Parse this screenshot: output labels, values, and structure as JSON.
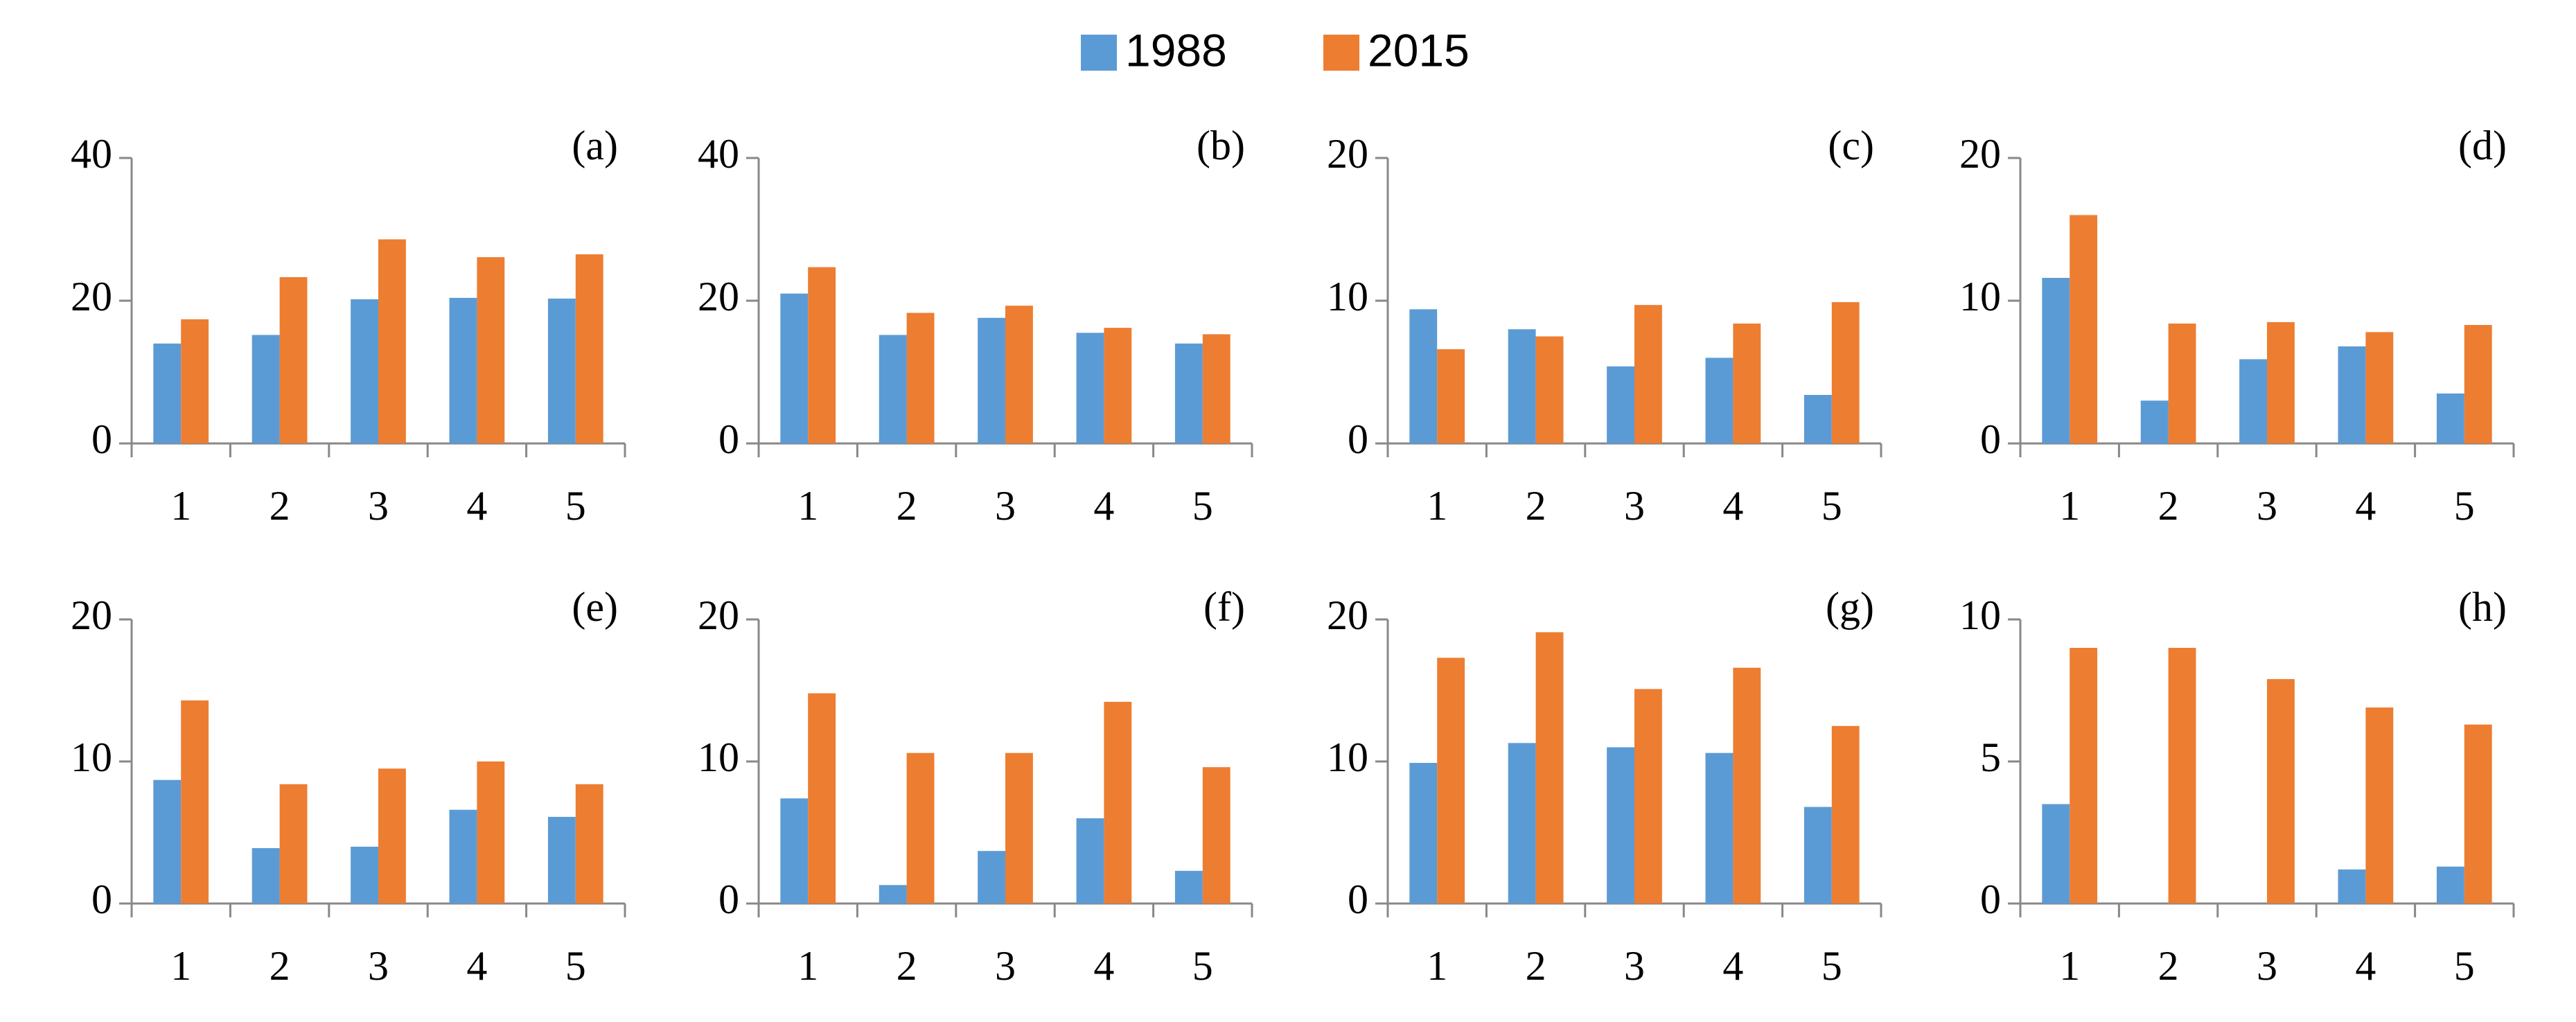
{
  "chart_data": [
    {
      "type": "bar",
      "title": "(a)",
      "categories": [
        "1",
        "2",
        "3",
        "4",
        "5"
      ],
      "ylim": [
        0,
        40
      ],
      "yticks": [
        0,
        20,
        40
      ],
      "series": [
        {
          "name": "1988",
          "color": "#5b9bd5",
          "values": [
            14,
            15.2,
            20.2,
            20.4,
            20.3
          ]
        },
        {
          "name": "2015",
          "color": "#ed7d31",
          "values": [
            17.4,
            23.3,
            28.6,
            26.1,
            26.5
          ]
        }
      ]
    },
    {
      "type": "bar",
      "title": "(b)",
      "categories": [
        "1",
        "2",
        "3",
        "4",
        "5"
      ],
      "ylim": [
        0,
        40
      ],
      "yticks": [
        0,
        20,
        40
      ],
      "series": [
        {
          "name": "1988",
          "color": "#5b9bd5",
          "values": [
            21,
            15.2,
            17.6,
            15.5,
            14
          ]
        },
        {
          "name": "2015",
          "color": "#ed7d31",
          "values": [
            24.7,
            18.3,
            19.3,
            16.2,
            15.3
          ]
        }
      ]
    },
    {
      "type": "bar",
      "title": "(c)",
      "categories": [
        "1",
        "2",
        "3",
        "4",
        "5"
      ],
      "ylim": [
        0,
        20
      ],
      "yticks": [
        0,
        10,
        20
      ],
      "series": [
        {
          "name": "1988",
          "color": "#5b9bd5",
          "values": [
            9.4,
            8,
            5.4,
            6,
            3.4
          ]
        },
        {
          "name": "2015",
          "color": "#ed7d31",
          "values": [
            6.6,
            7.5,
            9.7,
            8.4,
            9.9
          ]
        }
      ]
    },
    {
      "type": "bar",
      "title": "(d)",
      "categories": [
        "1",
        "2",
        "3",
        "4",
        "5"
      ],
      "ylim": [
        0,
        20
      ],
      "yticks": [
        0,
        10,
        20
      ],
      "series": [
        {
          "name": "1988",
          "color": "#5b9bd5",
          "values": [
            11.6,
            3,
            5.9,
            6.8,
            3.5
          ]
        },
        {
          "name": "2015",
          "color": "#ed7d31",
          "values": [
            16,
            8.4,
            8.5,
            7.8,
            8.3
          ]
        }
      ]
    },
    {
      "type": "bar",
      "title": "(e)",
      "categories": [
        "1",
        "2",
        "3",
        "4",
        "5"
      ],
      "ylim": [
        0,
        20
      ],
      "yticks": [
        0,
        10,
        20
      ],
      "series": [
        {
          "name": "1988",
          "color": "#5b9bd5",
          "values": [
            8.7,
            3.9,
            4,
            6.6,
            6.1
          ]
        },
        {
          "name": "2015",
          "color": "#ed7d31",
          "values": [
            14.3,
            8.4,
            9.5,
            10,
            8.4
          ]
        }
      ]
    },
    {
      "type": "bar",
      "title": "(f)",
      "categories": [
        "1",
        "2",
        "3",
        "4",
        "5"
      ],
      "ylim": [
        0,
        20
      ],
      "yticks": [
        0,
        10,
        20
      ],
      "series": [
        {
          "name": "1988",
          "color": "#5b9bd5",
          "values": [
            7.4,
            1.3,
            3.7,
            6,
            2.3
          ]
        },
        {
          "name": "2015",
          "color": "#ed7d31",
          "values": [
            14.8,
            10.6,
            10.6,
            14.2,
            9.6
          ]
        }
      ]
    },
    {
      "type": "bar",
      "title": "(g)",
      "categories": [
        "1",
        "2",
        "3",
        "4",
        "5"
      ],
      "ylim": [
        0,
        20
      ],
      "yticks": [
        0,
        10,
        20
      ],
      "series": [
        {
          "name": "1988",
          "color": "#5b9bd5",
          "values": [
            9.9,
            11.3,
            11,
            10.6,
            6.8
          ]
        },
        {
          "name": "2015",
          "color": "#ed7d31",
          "values": [
            17.3,
            19.1,
            15.1,
            16.6,
            12.5
          ]
        }
      ]
    },
    {
      "type": "bar",
      "title": "(h)",
      "categories": [
        "1",
        "2",
        "3",
        "4",
        "5"
      ],
      "ylim": [
        0,
        10
      ],
      "yticks": [
        0,
        5,
        10
      ],
      "series": [
        {
          "name": "1988",
          "color": "#5b9bd5",
          "values": [
            3.5,
            0,
            0,
            1.2,
            1.3
          ]
        },
        {
          "name": "2015",
          "color": "#ed7d31",
          "values": [
            9,
            9,
            7.9,
            6.9,
            6.3
          ]
        }
      ]
    }
  ]
}
